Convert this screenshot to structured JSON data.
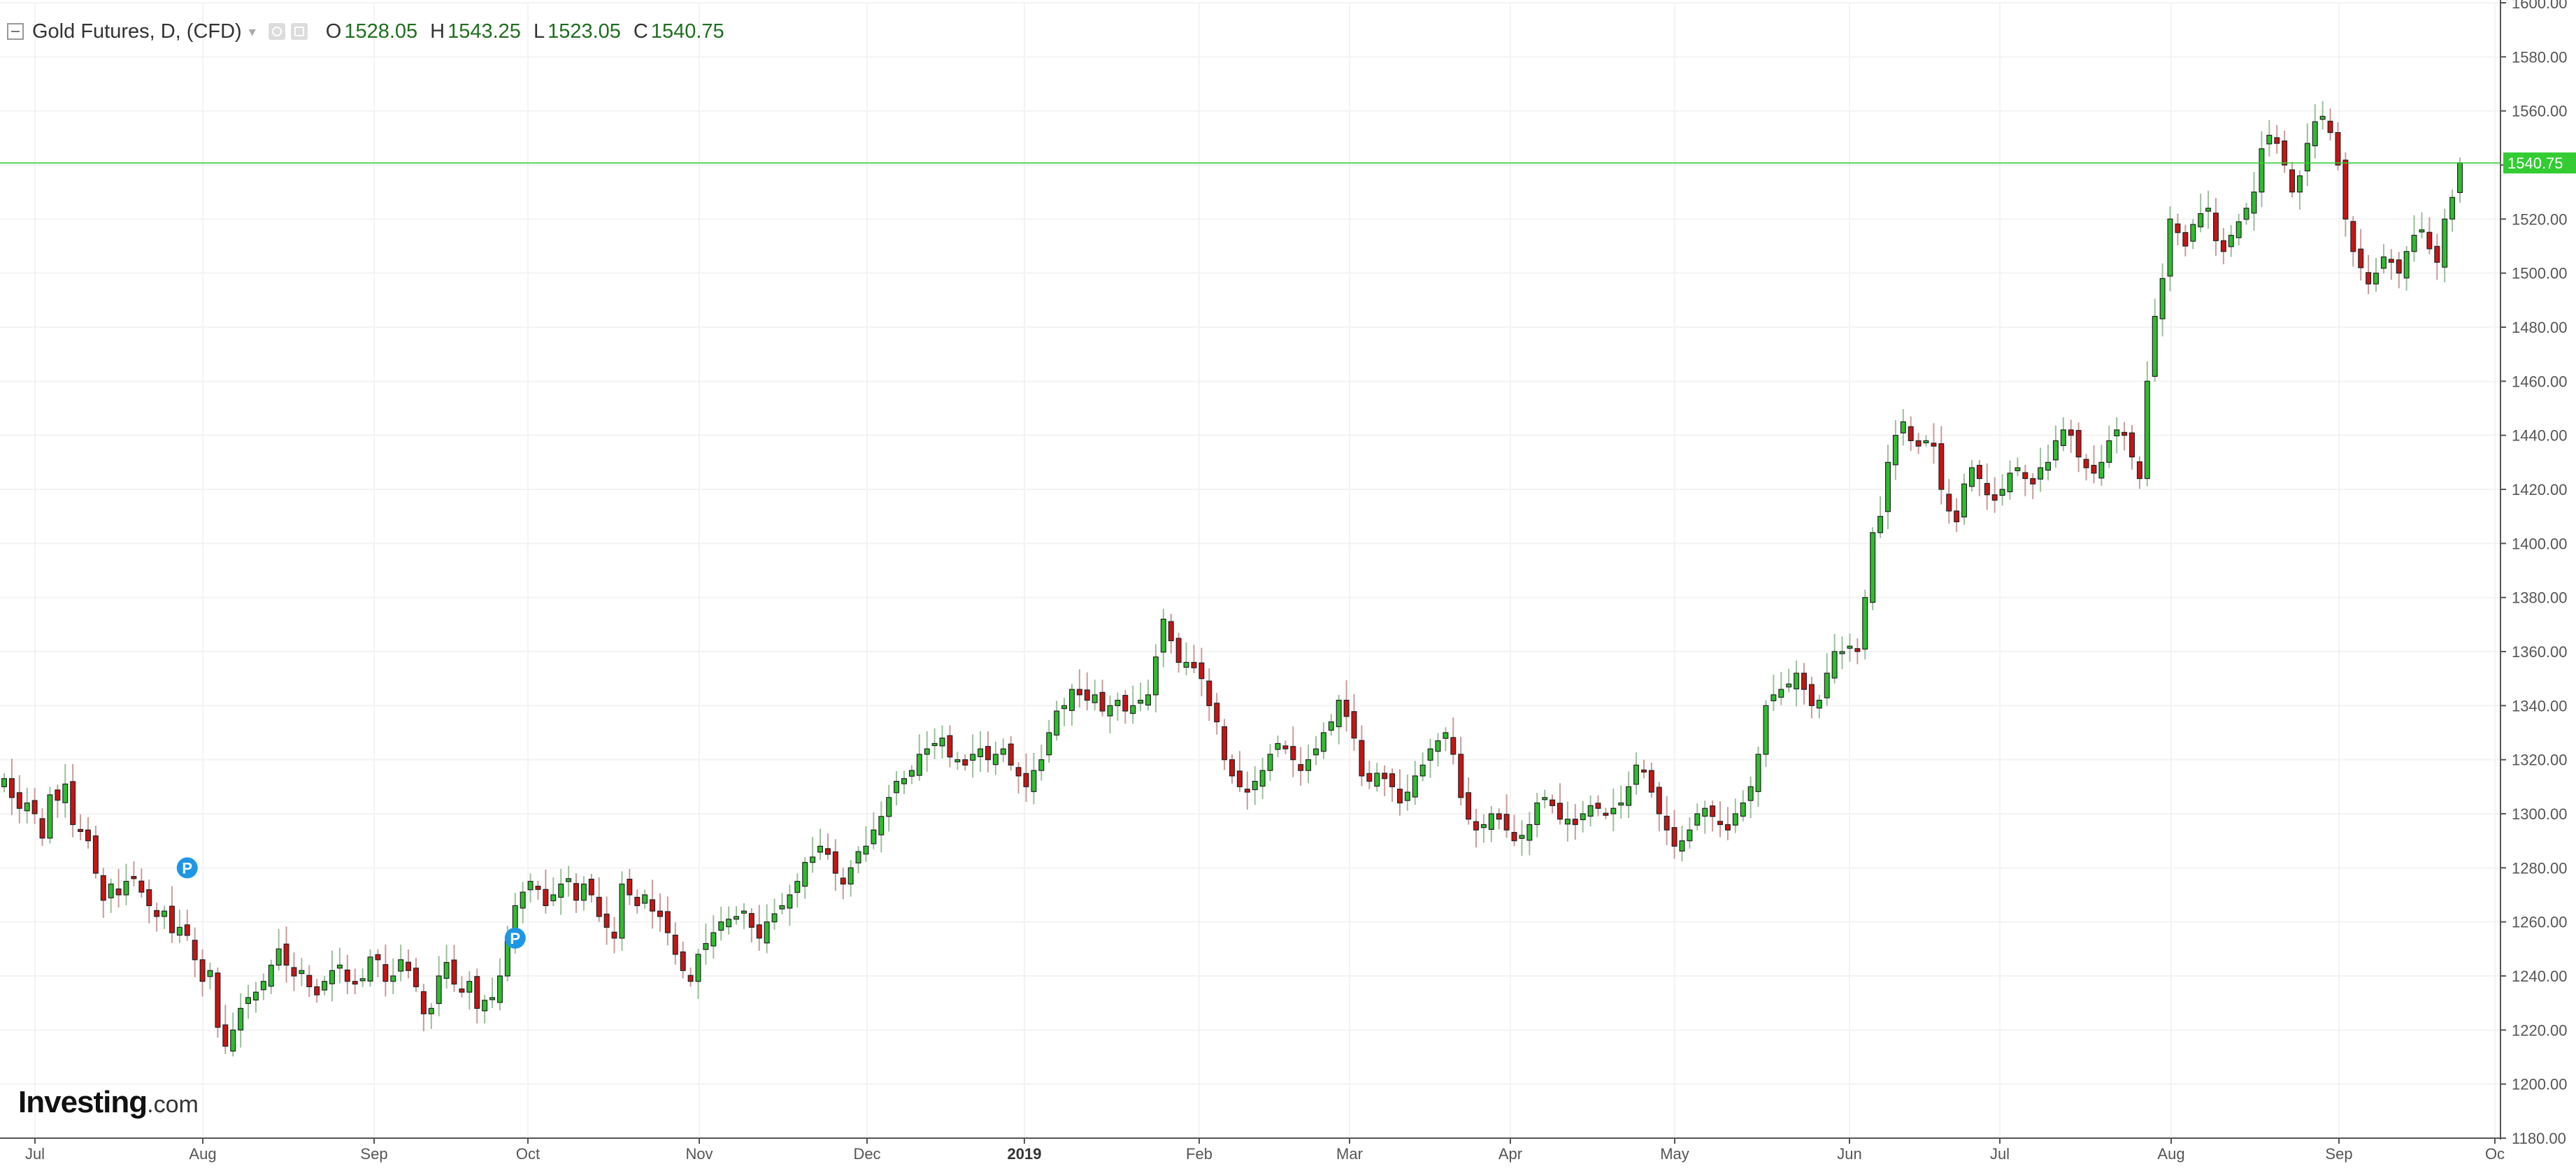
{
  "legend": {
    "symbol": "Gold Futures, D, (CFD)",
    "open_label": "O",
    "open": "1528.05",
    "high_label": "H",
    "high": "1543.25",
    "low_label": "L",
    "low": "1523.05",
    "close_label": "C",
    "close": "1540.75",
    "icons": [
      "collapse-icon",
      "chevron-down-icon",
      "visibility-icon",
      "settings-icon"
    ]
  },
  "logo": {
    "brand": "Investing",
    "suffix": ".com"
  },
  "colors": {
    "up": "#2ebd2e",
    "down": "#c81414",
    "last_price": "#33cc33",
    "marker": "#1e96e6",
    "grid": "#f3f3f3",
    "axis": "#555555"
  },
  "chart_data": {
    "type": "candlestick",
    "title": "Gold Futures, D, (CFD)",
    "ylim": [
      1180,
      1600
    ],
    "y_ticks": [
      "1180.00",
      "1200.00",
      "1220.00",
      "1240.00",
      "1260.00",
      "1280.00",
      "1300.00",
      "1320.00",
      "1340.00",
      "1360.00",
      "1380.00",
      "1400.00",
      "1420.00",
      "1440.00",
      "1460.00",
      "1480.00",
      "1500.00",
      "1520.00",
      "1540.00",
      "1560.00",
      "1580.00",
      "1600.00"
    ],
    "x_ticks": [
      {
        "label": "Jul",
        "bold": false
      },
      {
        "label": "Aug",
        "bold": false
      },
      {
        "label": "Sep",
        "bold": false
      },
      {
        "label": "Oct",
        "bold": false
      },
      {
        "label": "Nov",
        "bold": false
      },
      {
        "label": "Dec",
        "bold": false
      },
      {
        "label": "2019",
        "bold": true
      },
      {
        "label": "Feb",
        "bold": false
      },
      {
        "label": "Mar",
        "bold": false
      },
      {
        "label": "Apr",
        "bold": false
      },
      {
        "label": "May",
        "bold": false
      },
      {
        "label": "Jun",
        "bold": false
      },
      {
        "label": "Jul",
        "bold": false
      },
      {
        "label": "Aug",
        "bold": false
      },
      {
        "label": "Sep",
        "bold": false
      },
      {
        "label": "Oc",
        "bold": false
      }
    ],
    "last_price": "1540.75",
    "grid": true,
    "markers": [
      {
        "label": "P",
        "bar": 24,
        "price": 1280
      },
      {
        "label": "P",
        "bar": 67,
        "price": 1254
      }
    ],
    "closes": [
      1313,
      1306,
      1302,
      1304,
      1300,
      1291,
      1307,
      1305,
      1311,
      1296,
      1294,
      1290,
      1278,
      1268,
      1274,
      1270,
      1275,
      1276,
      1271,
      1266,
      1262,
      1264,
      1256,
      1258,
      1255,
      1246,
      1238,
      1242,
      1221,
      1214,
      1220,
      1228,
      1232,
      1234,
      1238,
      1244,
      1250,
      1244,
      1240,
      1242,
      1236,
      1233,
      1238,
      1242,
      1244,
      1238,
      1237,
      1239,
      1247,
      1246,
      1238,
      1240,
      1246,
      1242,
      1236,
      1226,
      1228,
      1240,
      1245,
      1237,
      1234,
      1238,
      1228,
      1231,
      1232,
      1240,
      1253,
      1266,
      1271,
      1275,
      1272,
      1266,
      1270,
      1274,
      1276,
      1268,
      1274,
      1270,
      1262,
      1258,
      1254,
      1274,
      1270,
      1266,
      1270,
      1264,
      1262,
      1256,
      1248,
      1242,
      1238,
      1248,
      1252,
      1256,
      1260,
      1261,
      1262,
      1264,
      1258,
      1254,
      1260,
      1263,
      1266,
      1270,
      1275,
      1282,
      1284,
      1288,
      1285,
      1278,
      1274,
      1280,
      1286,
      1288,
      1294,
      1299,
      1306,
      1312,
      1313,
      1316,
      1322,
      1324,
      1326,
      1328,
      1321,
      1320,
      1318,
      1322,
      1324,
      1320,
      1322,
      1324,
      1318,
      1314,
      1310,
      1316,
      1320,
      1330,
      1338,
      1340,
      1346,
      1344,
      1342,
      1344,
      1338,
      1340,
      1342,
      1338,
      1340,
      1342,
      1344,
      1358,
      1372,
      1364,
      1356,
      1356,
      1354,
      1350,
      1340,
      1334,
      1320,
      1314,
      1310,
      1308,
      1312,
      1316,
      1322,
      1326,
      1324,
      1320,
      1316,
      1320,
      1324,
      1330,
      1334,
      1342,
      1336,
      1328,
      1314,
      1312,
      1315,
      1313,
      1310,
      1304,
      1308,
      1314,
      1318,
      1324,
      1327,
      1330,
      1322,
      1306,
      1298,
      1294,
      1296,
      1300,
      1298,
      1294,
      1290,
      1292,
      1296,
      1304,
      1306,
      1303,
      1298,
      1298,
      1296,
      1300,
      1303,
      1302,
      1300,
      1302,
      1304,
      1310,
      1318,
      1316,
      1308,
      1300,
      1294,
      1288,
      1290,
      1294,
      1300,
      1302,
      1299,
      1296,
      1294,
      1300,
      1304,
      1310,
      1322,
      1340,
      1344,
      1346,
      1348,
      1352,
      1346,
      1340,
      1342,
      1352,
      1360,
      1360,
      1362,
      1360,
      1380,
      1404,
      1410,
      1430,
      1440,
      1445,
      1438,
      1436,
      1438,
      1436,
      1420,
      1412,
      1408,
      1422,
      1428,
      1424,
      1418,
      1416,
      1420,
      1426,
      1428,
      1424,
      1422,
      1428,
      1430,
      1438,
      1442,
      1440,
      1432,
      1428,
      1426,
      1430,
      1438,
      1442,
      1440,
      1432,
      1424,
      1460,
      1484,
      1498,
      1520,
      1515,
      1510,
      1518,
      1522,
      1524,
      1512,
      1508,
      1514,
      1519,
      1524,
      1530,
      1546,
      1551,
      1548,
      1540,
      1530,
      1536,
      1548,
      1556,
      1558,
      1552,
      1540,
      1520,
      1508,
      1502,
      1496,
      1500,
      1506,
      1504,
      1500,
      1508,
      1514,
      1516,
      1509,
      1504,
      1520,
      1528,
      1540.75
    ]
  }
}
